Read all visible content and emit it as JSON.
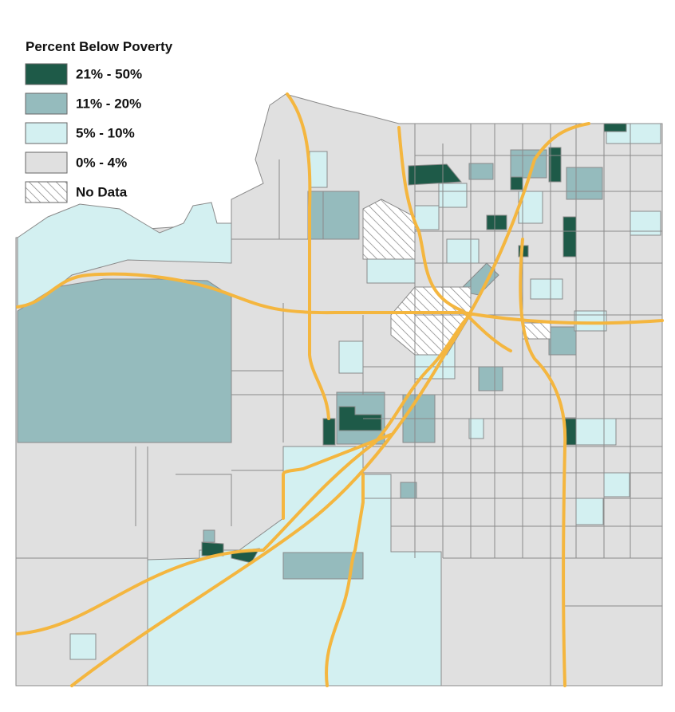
{
  "legend": {
    "title": "Percent Below Poverty",
    "items": [
      {
        "label": "21% - 50%",
        "color": "#1e5a48"
      },
      {
        "label": "11% - 20%",
        "color": "#95bbbd"
      },
      {
        "label": "5% - 10%",
        "color": "#d3f0f1"
      },
      {
        "label": "0% - 4%",
        "color": "#e0e0e0"
      },
      {
        "label": "No Data"
      }
    ]
  }
}
